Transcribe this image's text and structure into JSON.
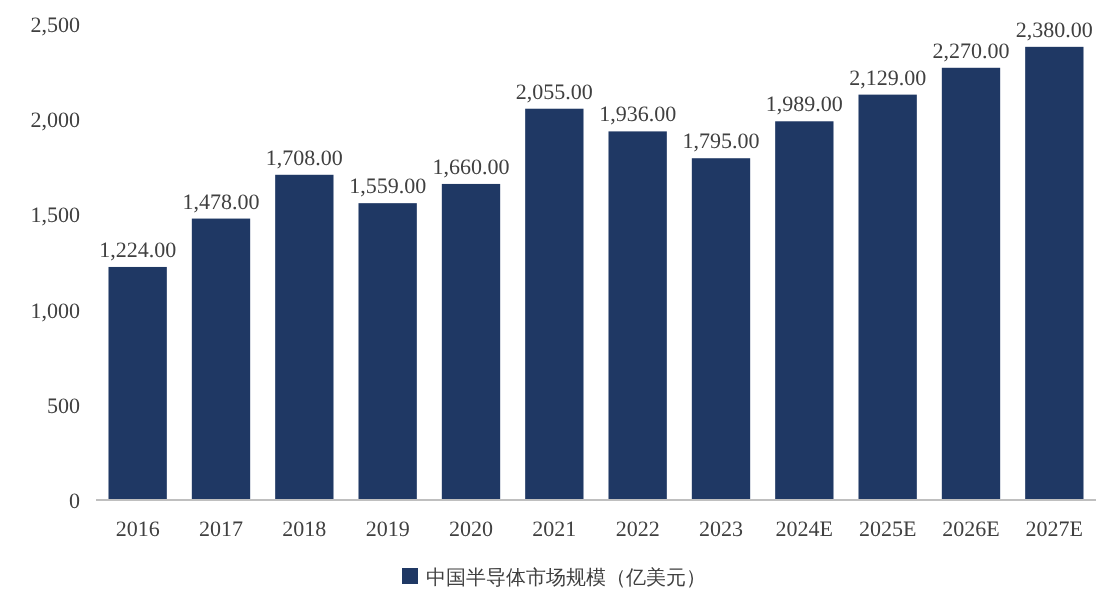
{
  "chart_data": {
    "type": "bar",
    "categories": [
      "2016",
      "2017",
      "2018",
      "2019",
      "2020",
      "2021",
      "2022",
      "2023",
      "2024E",
      "2025E",
      "2026E",
      "2027E"
    ],
    "series": [
      {
        "name": "中国半导体市场规模（亿美元）",
        "color": "#1f3864",
        "values": [
          1224,
          1478,
          1708,
          1559,
          1660,
          2055,
          1936,
          1795,
          1989,
          2129,
          2270,
          2380
        ],
        "value_labels": [
          "1,224.00",
          "1,478.00",
          "1,708.00",
          "1,559.00",
          "1,660.00",
          "2,055.00",
          "1,936.00",
          "1,795.00",
          "1,989.00",
          "2,129.00",
          "2,270.00",
          "2,380.00"
        ]
      }
    ],
    "ylim": [
      0,
      2500
    ],
    "yticks": [
      {
        "value": 0,
        "label": "0"
      },
      {
        "value": 500,
        "label": "500"
      },
      {
        "value": 1000,
        "label": "1,000"
      },
      {
        "value": 1500,
        "label": "1,500"
      },
      {
        "value": 2000,
        "label": "2,000"
      },
      {
        "value": 2500,
        "label": "2,500"
      }
    ],
    "grid": false,
    "legend": "bottom"
  }
}
